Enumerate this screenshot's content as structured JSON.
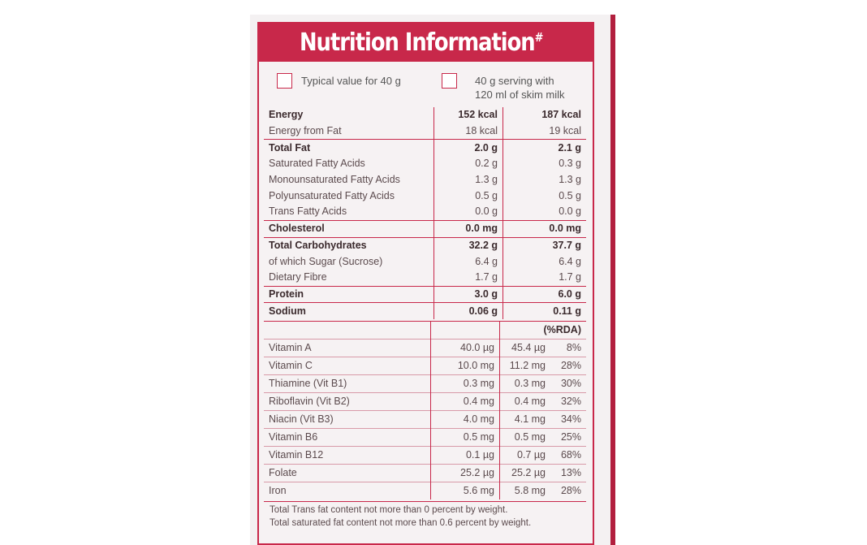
{
  "title": "Nutrition Information",
  "title_mark": "#",
  "legend": {
    "typical": "Typical value for 40 g",
    "serving_line1": "40 g serving with",
    "serving_line2": "120 ml of skim milk"
  },
  "nutrients": [
    {
      "name": "Energy",
      "v40": "152 kcal",
      "vserv": "187 kcal",
      "bold": true
    },
    {
      "name": "Energy from Fat",
      "v40": "18 kcal",
      "vserv": "19 kcal"
    },
    {
      "name": "Total Fat",
      "v40": "2.0 g",
      "vserv": "2.1 g",
      "bold": true
    },
    {
      "name": "Saturated Fatty Acids",
      "v40": "0.2 g",
      "vserv": "0.3 g"
    },
    {
      "name": "Monounsaturated Fatty Acids",
      "v40": "1.3 g",
      "vserv": "1.3 g"
    },
    {
      "name": "Polyunsaturated Fatty Acids",
      "v40": "0.5 g",
      "vserv": "0.5 g"
    },
    {
      "name": "Trans Fatty Acids",
      "v40": "0.0 g",
      "vserv": "0.0 g"
    },
    {
      "name": "Cholesterol",
      "v40": "0.0 mg",
      "vserv": "0.0 mg",
      "bold": true
    },
    {
      "name": "Total Carbohydrates",
      "v40": "32.2 g",
      "vserv": "37.7 g",
      "bold": true
    },
    {
      "name": "of which Sugar (Sucrose)",
      "v40": "6.4 g",
      "vserv": "6.4 g"
    },
    {
      "name": "Dietary Fibre",
      "v40": "1.7 g",
      "vserv": "1.7 g"
    },
    {
      "name": "Protein",
      "v40": "3.0 g",
      "vserv": "6.0 g",
      "bold": true
    },
    {
      "name": "Sodium",
      "v40": "0.06 g",
      "vserv": "0.11 g",
      "bold": true
    }
  ],
  "rda_header": "(%RDA)",
  "vitamins": [
    {
      "name": "Vitamin A",
      "v40": "40.0 µg",
      "vserv": "45.4 µg",
      "rda": "8%"
    },
    {
      "name": "Vitamin C",
      "v40": "10.0 mg",
      "vserv": "11.2 mg",
      "rda": "28%"
    },
    {
      "name": "Thiamine (Vit B1)",
      "v40": "0.3 mg",
      "vserv": "0.3 mg",
      "rda": "30%"
    },
    {
      "name": "Riboflavin (Vit B2)",
      "v40": "0.4 mg",
      "vserv": "0.4 mg",
      "rda": "32%"
    },
    {
      "name": "Niacin (Vit B3)",
      "v40": "4.0 mg",
      "vserv": "4.1 mg",
      "rda": "34%"
    },
    {
      "name": "Vitamin B6",
      "v40": "0.5 mg",
      "vserv": "0.5 mg",
      "rda": "25%"
    },
    {
      "name": "Vitamin B12",
      "v40": "0.1 µg",
      "vserv": "0.7 µg",
      "rda": "68%"
    },
    {
      "name": "Folate",
      "v40": "25.2 µg",
      "vserv": "25.2 µg",
      "rda": "13%"
    },
    {
      "name": "Iron",
      "v40": "5.6 mg",
      "vserv": "5.8 mg",
      "rda": "28%"
    }
  ],
  "footnotes": [
    "Total Trans fat content not more than 0 percent by weight.",
    "Total saturated fat content not more than 0.6 percent by weight."
  ],
  "colors": {
    "accent": "#c8284a",
    "background": "#f6f2f3",
    "text": "#5b4a4d"
  }
}
